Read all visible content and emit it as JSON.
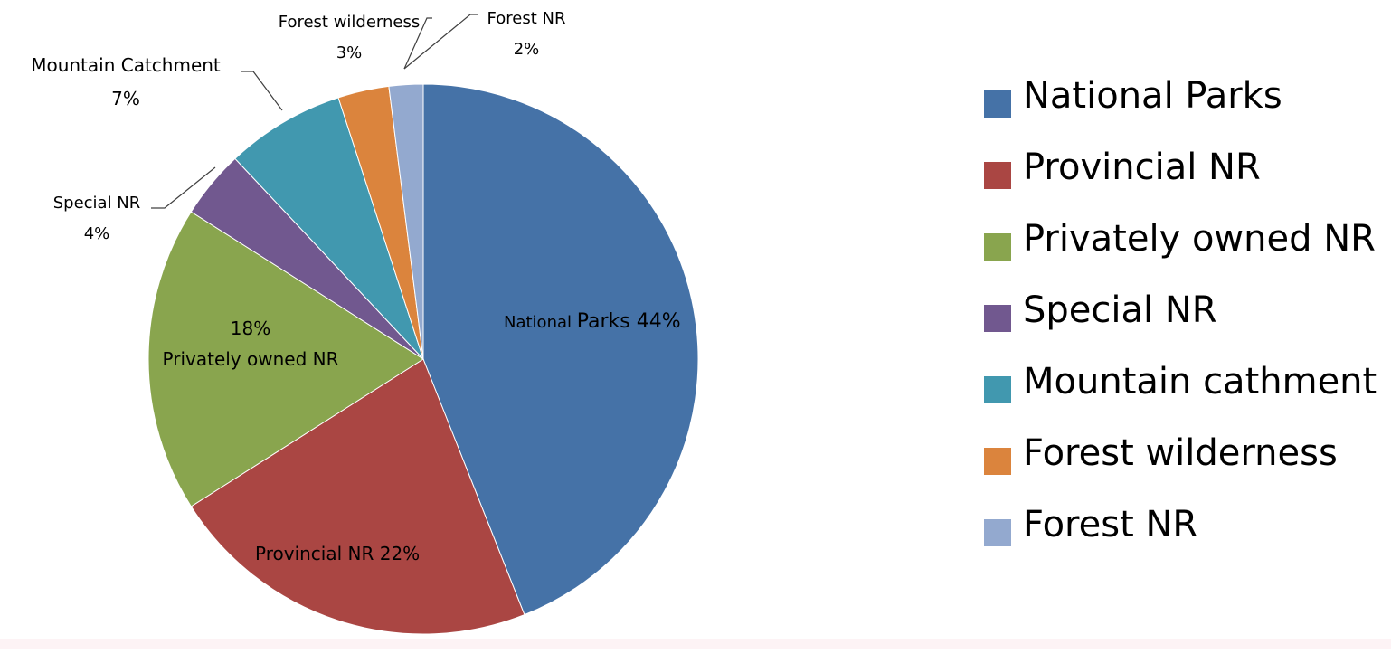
{
  "chart_data": {
    "type": "pie",
    "title": "",
    "categories": [
      "National Parks",
      "Provincial NR",
      "Privately owned NR",
      "Special NR",
      "Mountain cathment",
      "Forest wilderness",
      "Forest NR"
    ],
    "values": [
      44,
      22,
      18,
      4,
      7,
      3,
      2
    ],
    "unit": "%",
    "colors": [
      "#4572a7",
      "#aa4643",
      "#89a54e",
      "#71588f",
      "#4198af",
      "#db843d",
      "#93a9cf"
    ],
    "legend_position": "right",
    "slice_labels": [
      {
        "name": "National Parks",
        "value": "44%",
        "text_small": "National ",
        "text_large": "Parks 44%"
      },
      {
        "name": "Provincial NR",
        "value": "22%",
        "text": "Provincial NR 22%"
      },
      {
        "value_text": "18%",
        "name_text": "Privately owned NR"
      },
      {
        "name": "Special NR",
        "value": "4%"
      },
      {
        "name": "Mountain Catchment",
        "value": "7%"
      },
      {
        "name": "Forest wilderness",
        "value": "3%"
      },
      {
        "name": "Forest NR",
        "value": "2%"
      }
    ]
  }
}
